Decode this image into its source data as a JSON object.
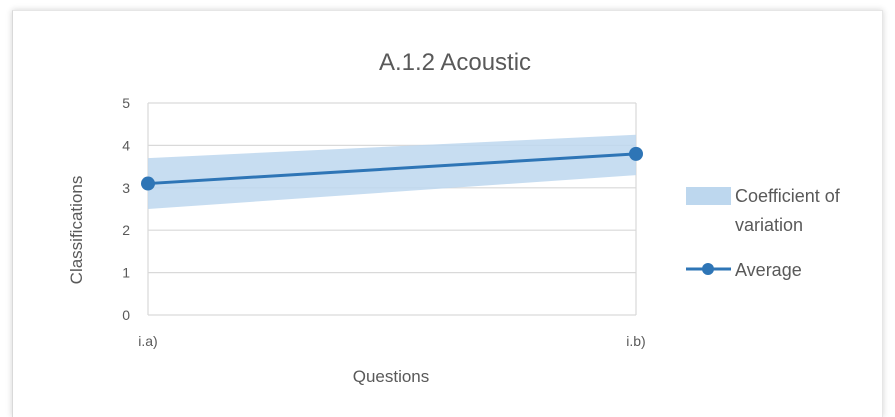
{
  "chart_data": {
    "type": "line",
    "title": "A.1.2 Acoustic",
    "xlabel": "Questions",
    "ylabel": "Classifications",
    "categories": [
      "i.a)",
      "i.b)"
    ],
    "ylim": [
      0,
      5
    ],
    "yticks": [
      "0",
      "1",
      "2",
      "3",
      "4",
      "5"
    ],
    "grid": true,
    "legend_position": "right",
    "series": [
      {
        "name": "Average",
        "type": "line",
        "color": "#2e75b6",
        "values": [
          3.1,
          3.8
        ]
      }
    ],
    "band": {
      "legend_lines": [
        "Coefficient of",
        "variation"
      ],
      "color": "#bdd7ee",
      "lower": [
        2.5,
        3.3
      ],
      "upper": [
        3.7,
        4.25
      ]
    }
  }
}
